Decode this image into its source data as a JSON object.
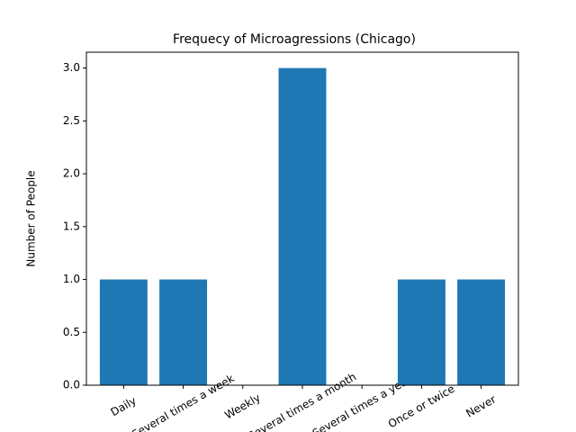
{
  "chart_data": {
    "type": "bar",
    "title": "Frequecy of Microagressions (Chicago)",
    "y_label": "Number of People",
    "categories": [
      "Daily",
      "Several times a week",
      "Weekly",
      "Several times a month",
      "Several times a year",
      "Once or twice",
      "Never"
    ],
    "values": [
      1,
      1,
      0,
      3,
      0,
      1,
      1
    ],
    "color": "#1f77b4",
    "ylim": [
      0,
      3.15
    ],
    "yticks": [
      {
        "value": 0,
        "label": "0.0"
      },
      {
        "value": 0.5,
        "label": "0.5"
      },
      {
        "value": 1,
        "label": "1.0"
      },
      {
        "value": 1.5,
        "label": "1.5"
      },
      {
        "value": 2,
        "label": "2.0"
      },
      {
        "value": 2.5,
        "label": "2.5"
      },
      {
        "value": 3,
        "label": "3.0"
      }
    ]
  }
}
